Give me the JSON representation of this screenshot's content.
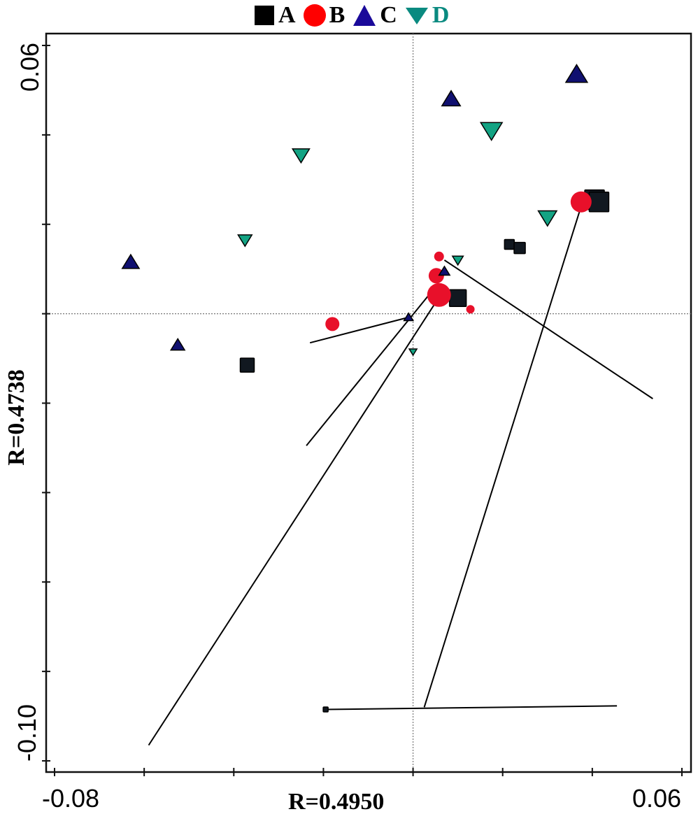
{
  "chart_data": {
    "type": "scatter",
    "title": "",
    "xlabel": "R=0.4950",
    "ylabel": "R=0.4738",
    "xlim": [
      -0.08,
      0.06
    ],
    "ylim": [
      -0.1,
      0.06
    ],
    "x_tick_labels": [
      "-0.08",
      "0.06"
    ],
    "y_tick_labels": [
      "0.06",
      "-0.10"
    ],
    "x_ticks": [
      -0.08,
      -0.06,
      -0.04,
      -0.02,
      0.0,
      0.02,
      0.04,
      0.06
    ],
    "y_ticks": [
      0.06,
      0.04,
      0.02,
      0.0,
      -0.02,
      -0.04,
      -0.06,
      -0.08,
      -0.1
    ],
    "grid": false,
    "reference_lines": {
      "x": 0.0,
      "y": 0.0,
      "style": "dotted"
    },
    "legend": {
      "position": "top",
      "entries": [
        {
          "label": "A",
          "marker": "square",
          "color": "#000000"
        },
        {
          "label": "B",
          "marker": "circle",
          "color": "#ff0000"
        },
        {
          "label": "C",
          "marker": "triangle-up",
          "color": "#1a0a9a"
        },
        {
          "label": "D",
          "marker": "triangle-down",
          "color": "#0a8a80"
        }
      ]
    },
    "series": [
      {
        "name": "A",
        "marker": "square",
        "color": "#111820",
        "points": [
          {
            "x": -0.037,
            "y": -0.0115,
            "size": 20
          },
          {
            "x": 0.01,
            "y": 0.0035,
            "size": 24
          },
          {
            "x": 0.0215,
            "y": 0.0155,
            "size": 14
          },
          {
            "x": 0.0238,
            "y": 0.0147,
            "size": 16
          },
          {
            "x": 0.0405,
            "y": 0.0255,
            "size": 28
          },
          {
            "x": 0.0415,
            "y": 0.025,
            "size": 28
          },
          {
            "x": -0.0195,
            "y": -0.0885,
            "size": 7
          }
        ]
      },
      {
        "name": "B",
        "marker": "circle",
        "color": "#e8102a",
        "points": [
          {
            "x": -0.018,
            "y": -0.0023,
            "size": 20
          },
          {
            "x": 0.0058,
            "y": 0.0128,
            "size": 14
          },
          {
            "x": 0.0052,
            "y": 0.0085,
            "size": 22
          },
          {
            "x": 0.0058,
            "y": 0.0042,
            "size": 34
          },
          {
            "x": 0.0128,
            "y": 0.001,
            "size": 12
          },
          {
            "x": 0.0375,
            "y": 0.025,
            "size": 30
          }
        ]
      },
      {
        "name": "C",
        "marker": "triangle-up",
        "color": "#101070",
        "points": [
          {
            "x": -0.063,
            "y": 0.0115,
            "size": 22
          },
          {
            "x": -0.0525,
            "y": -0.007,
            "size": 18
          },
          {
            "x": -0.001,
            "y": -0.0008,
            "size": 12
          },
          {
            "x": 0.007,
            "y": 0.0095,
            "size": 14
          },
          {
            "x": 0.0085,
            "y": 0.048,
            "size": 24
          },
          {
            "x": 0.0365,
            "y": 0.0535,
            "size": 28
          }
        ]
      },
      {
        "name": "D",
        "marker": "triangle-down",
        "color": "#13a383",
        "points": [
          {
            "x": -0.0375,
            "y": 0.0165,
            "size": 18
          },
          {
            "x": -0.025,
            "y": 0.0355,
            "size": 22
          },
          {
            "x": 0.0,
            "y": -0.0085,
            "size": 10
          },
          {
            "x": 0.01,
            "y": 0.012,
            "size": 14
          },
          {
            "x": 0.0175,
            "y": 0.041,
            "size": 28
          },
          {
            "x": 0.03,
            "y": 0.0215,
            "size": 24
          }
        ]
      }
    ],
    "arrows": [
      {
        "from": [
          -0.001,
          -0.0008
        ],
        "to": [
          -0.023,
          -0.0065
        ]
      },
      {
        "from": [
          0.005,
          0.006
        ],
        "to": [
          -0.0238,
          -0.0295
        ]
      },
      {
        "from": [
          0.006,
          0.004
        ],
        "to": [
          -0.059,
          -0.0965
        ]
      },
      {
        "from": [
          0.007,
          0.012
        ],
        "to": [
          0.0535,
          -0.019
        ]
      },
      {
        "from": [
          0.0375,
          0.024
        ],
        "to": [
          0.0025,
          -0.088
        ]
      },
      {
        "from": [
          -0.0195,
          -0.0885
        ],
        "to": [
          0.0455,
          -0.0877
        ]
      }
    ]
  }
}
